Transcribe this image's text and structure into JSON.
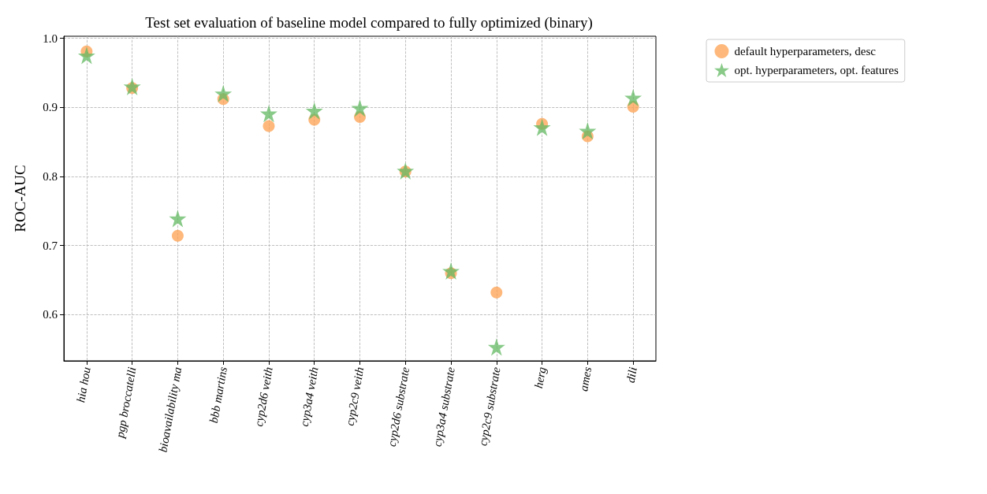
{
  "chart_data": {
    "type": "scatter",
    "title": "Test set evaluation of baseline model compared to fully optimized (binary)",
    "ylabel": "ROC-AUC",
    "categories": [
      "hia hou",
      "pgp broccatelli",
      "bioavailability ma",
      "bbb martins",
      "cyp2d6 veith",
      "cyp3a4 veith",
      "cyp2c9 veith",
      "cyp2d6 substrate",
      "cyp3a4 substrate",
      "cyp2c9 substrate",
      "herg",
      "ames",
      "dili"
    ],
    "series": [
      {
        "name": "default hyperparameters, desc",
        "color": "#fda04f",
        "marker": "circle",
        "values": [
          0.981,
          0.928,
          0.714,
          0.912,
          0.873,
          0.882,
          0.886,
          0.807,
          0.66,
          0.632,
          0.876,
          0.858,
          0.901
        ]
      },
      {
        "name": "opt. hyperparameters, opt. features",
        "color": "#62b862",
        "marker": "star",
        "values": [
          0.975,
          0.93,
          0.739,
          0.92,
          0.891,
          0.895,
          0.899,
          0.808,
          0.663,
          0.553,
          0.871,
          0.866,
          0.914
        ]
      }
    ],
    "ylim": [
      0.533,
      1.003
    ],
    "yticks": [
      0.6,
      0.7,
      0.8,
      0.9,
      {
        "value": 1.0,
        "label": "1.0"
      }
    ],
    "grid": true,
    "legend": "top right"
  }
}
